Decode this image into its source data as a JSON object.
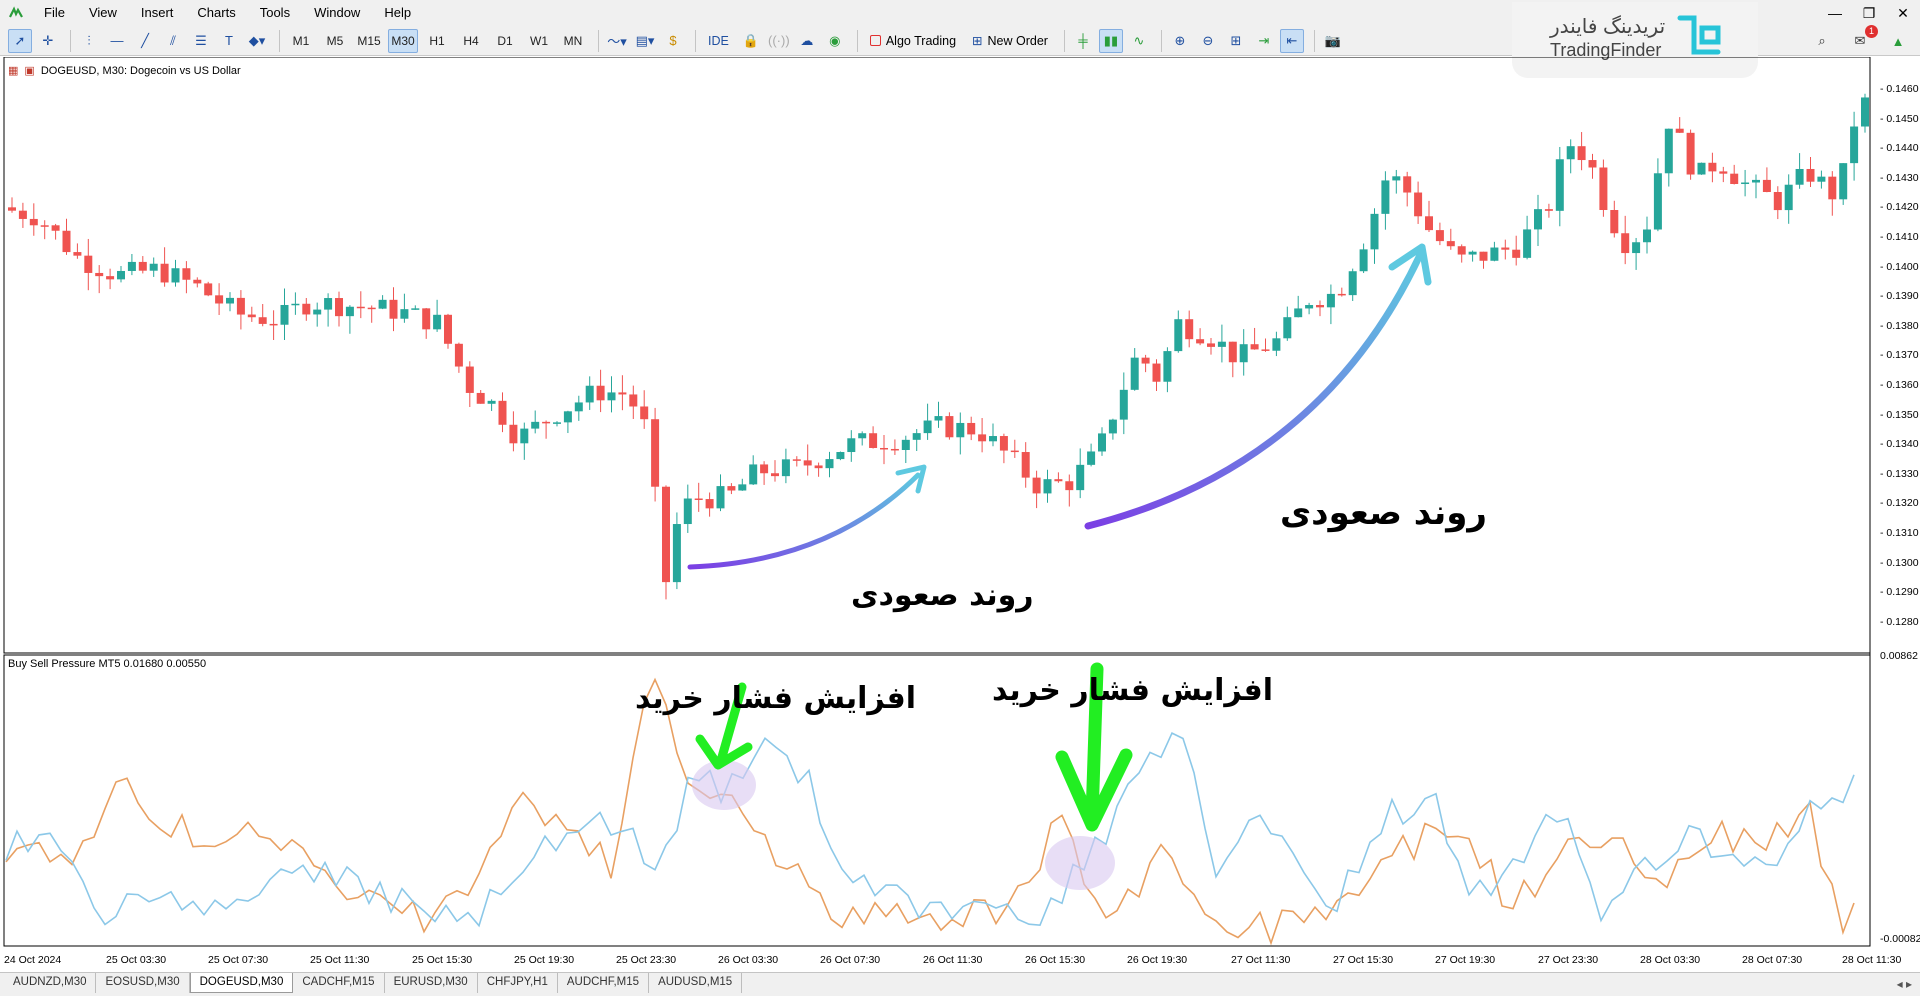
{
  "menu": {
    "items": [
      "File",
      "View",
      "Insert",
      "Charts",
      "Tools",
      "Window",
      "Help"
    ]
  },
  "toolbar": {
    "timeframes": [
      "M1",
      "M5",
      "M15",
      "M30",
      "H1",
      "H4",
      "D1",
      "W1",
      "MN"
    ],
    "active_timeframe": "M30",
    "ide_label": "IDE",
    "algo_trading_label": "Algo Trading",
    "new_order_label": "New Order",
    "notification_count": "1"
  },
  "logo": {
    "text_fa": "تریدینگ فایندر",
    "text_en": "TradingFinder"
  },
  "chart": {
    "title": "DOGEUSD, M30:  Dogecoin vs US Dollar",
    "indicator_title": "Buy Sell Pressure MT5 0.01680 0.00550",
    "annotations": {
      "uptrend_small": "روند صعودی",
      "uptrend_large": "روند صعودی",
      "buy_pressure_1": "افزایش فشار خرید",
      "buy_pressure_2": "افزایش فشار خرید"
    },
    "price_labels": [
      "0.1460",
      "0.1450",
      "0.1440",
      "0.1430",
      "0.1420",
      "0.1410",
      "0.1400",
      "0.1390",
      "0.1380",
      "0.1370",
      "0.1360",
      "0.1350",
      "0.1340",
      "0.1330",
      "0.1320",
      "0.1310",
      "0.1300",
      "0.1290",
      "0.1280"
    ],
    "indicator_labels": [
      "0.00862",
      "-0.00082"
    ],
    "time_labels": [
      "24 Oct 2024",
      "25 Oct 03:30",
      "25 Oct 07:30",
      "25 Oct 11:30",
      "25 Oct 15:30",
      "25 Oct 19:30",
      "25 Oct 23:30",
      "26 Oct 03:30",
      "26 Oct 07:30",
      "26 Oct 11:30",
      "26 Oct 15:30",
      "26 Oct 19:30",
      "27 Oct 11:30",
      "27 Oct 15:30",
      "27 Oct 19:30",
      "27 Oct 23:30",
      "28 Oct 03:30",
      "28 Oct 07:30",
      "28 Oct 11:30"
    ],
    "colors": {
      "bull": "#26a69a",
      "bear": "#ef5350",
      "buy_line": "#8cc8e8",
      "sell_line": "#e8a062",
      "arrow_gradient_start": "#5ec9e0",
      "arrow_gradient_end": "#7b3fe4",
      "pressure_arrow": "#22ee22",
      "highlight": "#d8c8f0"
    }
  },
  "tabs": {
    "items": [
      "AUDNZD,M30",
      "EOSUSD,M30",
      "DOGEUSD,M30",
      "CADCHF,M15",
      "EURUSD,M30",
      "CHFJPY,H1",
      "AUDCHF,M15",
      "AUDUSD,M15"
    ],
    "active": "DOGEUSD,M30"
  }
}
